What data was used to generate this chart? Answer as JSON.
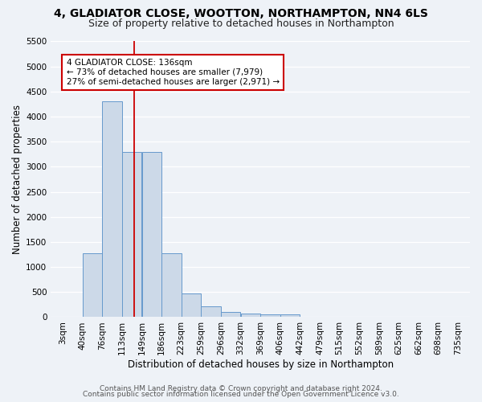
{
  "title1": "4, GLADIATOR CLOSE, WOOTTON, NORTHAMPTON, NN4 6LS",
  "title2": "Size of property relative to detached houses in Northampton",
  "xlabel": "Distribution of detached houses by size in Northampton",
  "ylabel": "Number of detached properties",
  "bin_labels": [
    "3sqm",
    "40sqm",
    "76sqm",
    "113sqm",
    "149sqm",
    "186sqm",
    "223sqm",
    "259sqm",
    "296sqm",
    "332sqm",
    "369sqm",
    "406sqm",
    "442sqm",
    "479sqm",
    "515sqm",
    "552sqm",
    "589sqm",
    "625sqm",
    "662sqm",
    "698sqm",
    "735sqm"
  ],
  "bar_values": [
    0,
    1270,
    4300,
    3300,
    3300,
    1280,
    480,
    220,
    100,
    75,
    50,
    50,
    0,
    0,
    0,
    0,
    0,
    0,
    0,
    0
  ],
  "bar_color": "#ccd9e8",
  "bar_edgecolor": "#6699cc",
  "red_line_color": "#cc0000",
  "annotation_text": "4 GLADIATOR CLOSE: 136sqm\n← 73% of detached houses are smaller (7,979)\n27% of semi-detached houses are larger (2,971) →",
  "annotation_box_color": "#ffffff",
  "annotation_box_edgecolor": "#cc0000",
  "ylim": [
    0,
    5500
  ],
  "yticks": [
    0,
    500,
    1000,
    1500,
    2000,
    2500,
    3000,
    3500,
    4000,
    4500,
    5000,
    5500
  ],
  "footer1": "Contains HM Land Registry data © Crown copyright and database right 2024.",
  "footer2": "Contains public sector information licensed under the Open Government Licence v3.0.",
  "background_color": "#eef2f7",
  "grid_color": "#ffffff",
  "title1_fontsize": 10,
  "title2_fontsize": 9,
  "axis_label_fontsize": 8.5,
  "tick_fontsize": 7.5,
  "annotation_fontsize": 7.5,
  "footer_fontsize": 6.5,
  "bin_width": 37
}
